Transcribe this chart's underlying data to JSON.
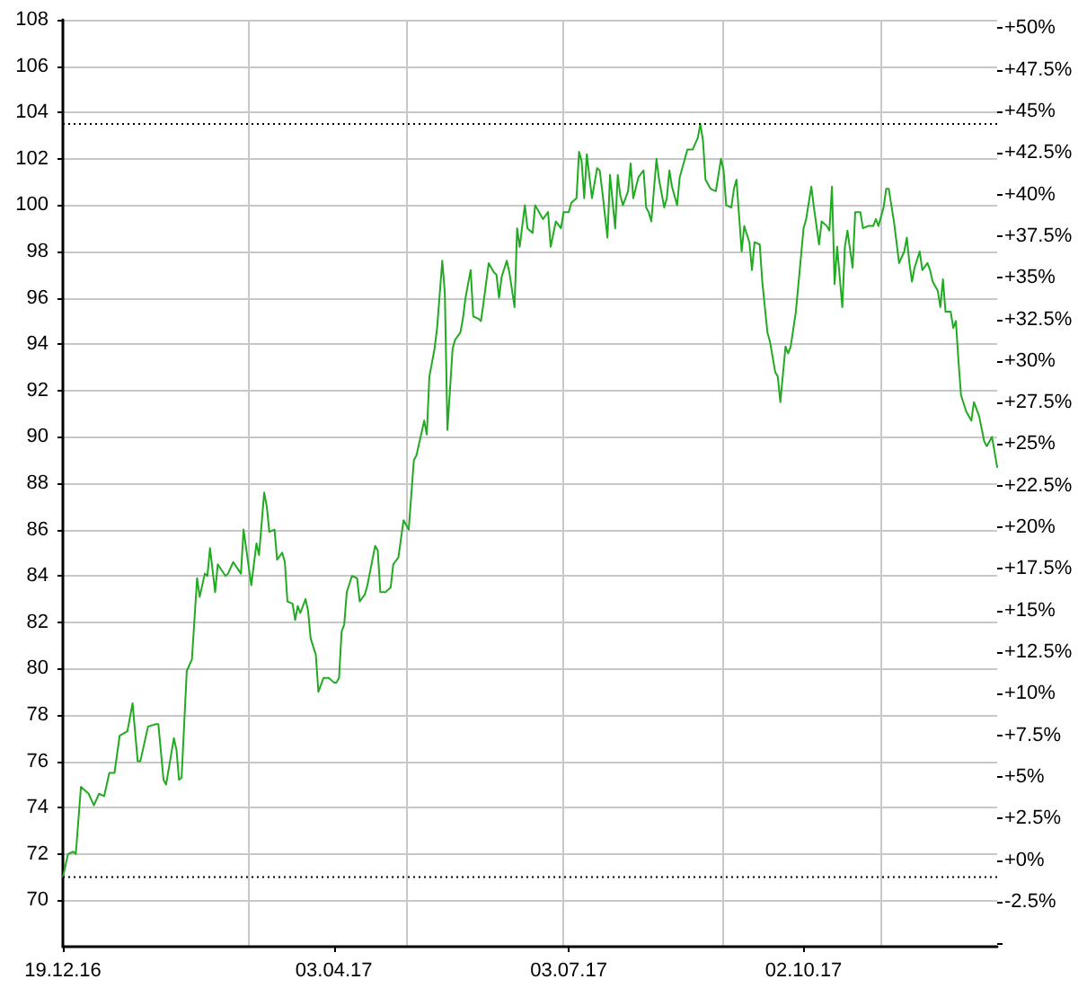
{
  "chart_data": {
    "type": "line",
    "xlim": [
      "2016-12-19",
      "2017-12-16"
    ],
    "xticks": [
      {
        "value": "2016-12-19",
        "label": "19.12.16"
      },
      {
        "value": "2017-03-01",
        "label": null
      },
      {
        "value": "2017-04-03",
        "label": "03.04.17"
      },
      {
        "value": "2017-05-01",
        "label": null
      },
      {
        "value": "2017-07-01",
        "label": null
      },
      {
        "value": "2017-07-03",
        "label": "03.07.17"
      },
      {
        "value": "2017-09-01",
        "label": null
      },
      {
        "value": "2017-10-02",
        "label": "02.10.17"
      },
      {
        "value": "2017-11-01",
        "label": null
      }
    ],
    "ylim": [
      68,
      108
    ],
    "yticks": [
      70,
      72,
      74,
      76,
      78,
      80,
      82,
      84,
      86,
      88,
      90,
      92,
      94,
      96,
      98,
      100,
      102,
      104,
      106,
      108
    ],
    "y2lim": [
      -5.2,
      50.5
    ],
    "y2ticks": [
      {
        "value": -5,
        "label": null
      },
      {
        "value": -2.5,
        "label": "-2.5%"
      },
      {
        "value": 0,
        "label": "+0%"
      },
      {
        "value": 2.5,
        "label": "+2.5%"
      },
      {
        "value": 5,
        "label": "+5%"
      },
      {
        "value": 7.5,
        "label": "+7.5%"
      },
      {
        "value": 10,
        "label": "+10%"
      },
      {
        "value": 12.5,
        "label": "+12.5%"
      },
      {
        "value": 15,
        "label": "+15%"
      },
      {
        "value": 17.5,
        "label": "+17.5%"
      },
      {
        "value": 20,
        "label": "+20%"
      },
      {
        "value": 22.5,
        "label": "+22.5%"
      },
      {
        "value": 25,
        "label": "+25%"
      },
      {
        "value": 27.5,
        "label": "+27.5%"
      },
      {
        "value": 30,
        "label": "+30%"
      },
      {
        "value": 32.5,
        "label": "+32.5%"
      },
      {
        "value": 35,
        "label": "+35%"
      },
      {
        "value": 37.5,
        "label": "+37.5%"
      },
      {
        "value": 40,
        "label": "+40%"
      },
      {
        "value": 42.5,
        "label": "+42.5%"
      },
      {
        "value": 45,
        "label": "+45%"
      },
      {
        "value": 47.5,
        "label": "+47.5%"
      },
      {
        "value": 50,
        "label": "+50%"
      }
    ],
    "grid": true,
    "ref_lines": [
      {
        "axis": "y",
        "value": 103.5,
        "color": "#000000",
        "line_style": "dotted"
      },
      {
        "axis": "y",
        "value": 71.0,
        "color": "#000000",
        "line_style": "dotted"
      }
    ],
    "series": [
      {
        "color": "#22aa22",
        "x": [
          "2016-12-19",
          "2016-12-21",
          "2016-12-23",
          "2016-12-24",
          "2016-12-26",
          "2016-12-29",
          "2016-12-31",
          "2017-01-02",
          "2017-01-04",
          "2017-01-06",
          "2017-01-08",
          "2017-01-10",
          "2017-01-13",
          "2017-01-15",
          "2017-01-17",
          "2017-01-18",
          "2017-01-21",
          "2017-01-24",
          "2017-01-25",
          "2017-01-27",
          "2017-01-28",
          "2017-01-31",
          "2017-02-01",
          "2017-02-02",
          "2017-02-03",
          "2017-02-05",
          "2017-02-07",
          "2017-02-09",
          "2017-02-10",
          "2017-02-12",
          "2017-02-13",
          "2017-02-14",
          "2017-02-16",
          "2017-02-17",
          "2017-02-20",
          "2017-02-21",
          "2017-02-23",
          "2017-02-26",
          "2017-02-27",
          "2017-03-02",
          "2017-03-04",
          "2017-03-05",
          "2017-03-07",
          "2017-03-08",
          "2017-03-09",
          "2017-03-11",
          "2017-03-12",
          "2017-03-14",
          "2017-03-15",
          "2017-03-16",
          "2017-03-18",
          "2017-03-19",
          "2017-03-20",
          "2017-03-21",
          "2017-03-23",
          "2017-03-24",
          "2017-03-25",
          "2017-03-27",
          "2017-03-28",
          "2017-03-30",
          "2017-04-01",
          "2017-04-03",
          "2017-04-04",
          "2017-04-05",
          "2017-04-06",
          "2017-04-07",
          "2017-04-08",
          "2017-04-10",
          "2017-04-12",
          "2017-04-13",
          "2017-04-15",
          "2017-04-16",
          "2017-04-19",
          "2017-04-20",
          "2017-04-21",
          "2017-04-23",
          "2017-04-25",
          "2017-04-26",
          "2017-04-28",
          "2017-04-29",
          "2017-04-30",
          "2017-05-02",
          "2017-05-04",
          "2017-05-05",
          "2017-05-07",
          "2017-05-08",
          "2017-05-09",
          "2017-05-10",
          "2017-05-12",
          "2017-05-13",
          "2017-05-15",
          "2017-05-16",
          "2017-05-17",
          "2017-05-19",
          "2017-05-20",
          "2017-05-22",
          "2017-05-23",
          "2017-05-24",
          "2017-05-26",
          "2017-05-27",
          "2017-05-29",
          "2017-05-30",
          "2017-05-31",
          "2017-06-02",
          "2017-06-04",
          "2017-06-05",
          "2017-06-06",
          "2017-06-07",
          "2017-06-09",
          "2017-06-10",
          "2017-06-12",
          "2017-06-13",
          "2017-06-14",
          "2017-06-16",
          "2017-06-17",
          "2017-06-19",
          "2017-06-20",
          "2017-06-22",
          "2017-06-23",
          "2017-06-25",
          "2017-06-26",
          "2017-06-28",
          "2017-06-30",
          "2017-07-01",
          "2017-07-03",
          "2017-07-04",
          "2017-07-06",
          "2017-07-07",
          "2017-07-08",
          "2017-07-09",
          "2017-07-10",
          "2017-07-12",
          "2017-07-14",
          "2017-07-15",
          "2017-07-16",
          "2017-07-18",
          "2017-07-19",
          "2017-07-21",
          "2017-07-22",
          "2017-07-23",
          "2017-07-24",
          "2017-07-26",
          "2017-07-27",
          "2017-07-28",
          "2017-07-30",
          "2017-08-01",
          "2017-08-02",
          "2017-08-03",
          "2017-08-04",
          "2017-08-06",
          "2017-08-07",
          "2017-08-09",
          "2017-08-10",
          "2017-08-11",
          "2017-08-12",
          "2017-08-14",
          "2017-08-15",
          "2017-08-17",
          "2017-08-18",
          "2017-08-20",
          "2017-08-22",
          "2017-08-23",
          "2017-08-24",
          "2017-08-25",
          "2017-08-27",
          "2017-08-29",
          "2017-08-31",
          "2017-09-01",
          "2017-09-02",
          "2017-09-04",
          "2017-09-05",
          "2017-09-06",
          "2017-09-08",
          "2017-09-09",
          "2017-09-11",
          "2017-09-12",
          "2017-09-13",
          "2017-09-15",
          "2017-09-16",
          "2017-09-18",
          "2017-09-19",
          "2017-09-21",
          "2017-09-22",
          "2017-09-23",
          "2017-09-25",
          "2017-09-26",
          "2017-09-27",
          "2017-09-29",
          "2017-10-01",
          "2017-10-02",
          "2017-10-03",
          "2017-10-05",
          "2017-10-06",
          "2017-10-08",
          "2017-10-09",
          "2017-10-11",
          "2017-10-12",
          "2017-10-13",
          "2017-10-14",
          "2017-10-15",
          "2017-10-17",
          "2017-10-18",
          "2017-10-19",
          "2017-10-21",
          "2017-10-22",
          "2017-10-24",
          "2017-10-25",
          "2017-10-27",
          "2017-10-29",
          "2017-10-30",
          "2017-10-31",
          "2017-11-02",
          "2017-11-03",
          "2017-11-04",
          "2017-11-06",
          "2017-11-07",
          "2017-11-08",
          "2017-11-10",
          "2017-11-11",
          "2017-11-12",
          "2017-11-13",
          "2017-11-14",
          "2017-11-16",
          "2017-11-17",
          "2017-11-19",
          "2017-11-20",
          "2017-11-21",
          "2017-11-23",
          "2017-11-24",
          "2017-11-25",
          "2017-11-26",
          "2017-11-28",
          "2017-11-29",
          "2017-11-30",
          "2017-12-01",
          "2017-12-02",
          "2017-12-04",
          "2017-12-06",
          "2017-12-07",
          "2017-12-09",
          "2017-12-11",
          "2017-12-12",
          "2017-12-14",
          "2017-12-16"
        ],
        "values": [
          71.0,
          72.0,
          72.1,
          72.0,
          74.9,
          74.6,
          74.1,
          74.6,
          74.5,
          75.5,
          75.5,
          77.1,
          77.3,
          78.5,
          76.0,
          76.0,
          77.5,
          77.6,
          77.6,
          75.2,
          75.0,
          77.0,
          76.5,
          75.2,
          75.3,
          79.9,
          80.4,
          83.9,
          83.1,
          84.1,
          84.0,
          85.2,
          83.3,
          84.5,
          84.0,
          84.1,
          84.6,
          84.1,
          86.0,
          83.6,
          85.4,
          84.9,
          87.6,
          87.0,
          85.9,
          86.0,
          84.7,
          85.0,
          84.6,
          82.9,
          82.8,
          82.1,
          82.7,
          82.4,
          83.0,
          82.5,
          81.3,
          80.6,
          79.0,
          79.6,
          79.6,
          79.4,
          79.4,
          79.6,
          81.6,
          81.9,
          83.3,
          84.0,
          83.9,
          82.9,
          83.2,
          83.6,
          85.3,
          85.1,
          83.3,
          83.3,
          83.5,
          84.5,
          84.8,
          85.6,
          86.4,
          86.0,
          89.0,
          89.2,
          90.2,
          90.7,
          90.1,
          92.6,
          93.8,
          94.7,
          97.6,
          96.2,
          90.3,
          93.8,
          94.2,
          94.5,
          95.1,
          96.0,
          97.2,
          95.2,
          95.1,
          95.0,
          95.8,
          97.5,
          97.1,
          97.0,
          96.0,
          96.9,
          97.6,
          97.1,
          95.6,
          99.0,
          98.2,
          100.0,
          99.0,
          98.8,
          100.0,
          99.6,
          99.4,
          99.7,
          98.2,
          99.3,
          99.0,
          99.7,
          99.7,
          100.1,
          100.3,
          102.3,
          101.9,
          100.3,
          102.2,
          100.3,
          101.6,
          101.5,
          100.6,
          98.6,
          101.3,
          99.0,
          101.3,
          100.4,
          100.0,
          100.6,
          101.8,
          100.3,
          101.2,
          101.5,
          99.9,
          99.7,
          99.3,
          102.0,
          101.1,
          99.9,
          100.3,
          101.5,
          100.8,
          100.0,
          101.2,
          102.0,
          102.4,
          102.4,
          102.9,
          103.5,
          102.8,
          101.1,
          100.7,
          100.6,
          102.0,
          101.5,
          100.0,
          99.9,
          100.7,
          101.1,
          98.0,
          99.1,
          98.4,
          97.2,
          98.4,
          98.3,
          96.7,
          94.5,
          94.1,
          92.8,
          92.6,
          91.5,
          93.9,
          93.6,
          93.9,
          95.4,
          97.8,
          99.0,
          99.4,
          100.8,
          99.9,
          98.3,
          99.3,
          99.1,
          98.9,
          100.8,
          96.6,
          98.2,
          95.6,
          98.2,
          98.9,
          97.3,
          99.7,
          99.7,
          99.0,
          99.1,
          99.1,
          99.4,
          99.1,
          99.9,
          100.7,
          100.7,
          99.3,
          98.4,
          97.5,
          98.0,
          98.6,
          97.5,
          96.7,
          97.3,
          98.0,
          97.2,
          97.5,
          97.2,
          96.7,
          96.3,
          95.6,
          96.8,
          95.4,
          95.4,
          94.7,
          95.0,
          93.3,
          91.8,
          91.1,
          90.7,
          91.5,
          90.9,
          89.8,
          89.6,
          90.0,
          88.7
        ]
      }
    ]
  }
}
